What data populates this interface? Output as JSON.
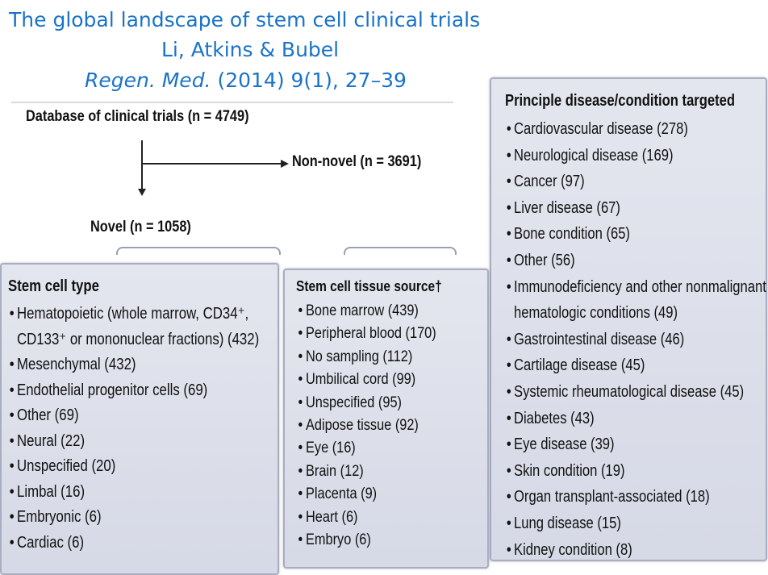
{
  "title": {
    "line1": "The global landscape of stem cell clinical trials",
    "line2": "Li, Atkins & Bubel",
    "journal": "Regen. Med.",
    "citation": " (2014) 9(1), 27–39"
  },
  "flow": {
    "database": "Database of clinical trials (n = 4749)",
    "non_novel": "Non-novel (n = 3691)",
    "novel": "Novel (n = 1058)"
  },
  "stem_cell_type": {
    "heading": "Stem cell type",
    "items": [
      "Hematopoietic (whole marrow, CD34⁺,",
      "CD133⁺ or mononuclear fractions) (432)",
      "Mesenchymal (432)",
      "Endothelial progenitor cells (69)",
      "Other (69)",
      "Neural (22)",
      "Unspecified (20)",
      "Limbal (16)",
      "Embryonic (6)",
      "Cardiac (6)"
    ]
  },
  "tissue_source": {
    "heading": "Stem cell tissue source†",
    "items": [
      "Bone marrow (439)",
      "Peripheral blood (170)",
      "No sampling (112)",
      "Umbilical cord (99)",
      "Unspecified (95)",
      "Adipose tissue (92)",
      "Eye (16)",
      "Brain (12)",
      "Placenta (9)",
      "Heart (6)",
      "Embryo (6)"
    ]
  },
  "disease": {
    "heading": "Principle disease/condition targeted",
    "items": [
      "Cardiovascular disease (278)",
      "Neurological disease (169)",
      "Cancer (97)",
      "Liver disease (67)",
      "Bone condition (65)",
      "Other (56)",
      "Immunodeficiency and other nonmalignant",
      "hematologic conditions (49)",
      "Gastrointestinal disease (46)",
      "Cartilage disease (45)",
      "Systemic rheumatological disease (45)",
      "Diabetes (43)",
      "Eye disease (39)",
      "Skin condition (19)",
      "Organ transplant-associated (18)",
      "Lung disease (15)",
      "Kidney condition (8)"
    ]
  },
  "colors": {
    "title": "#1a73c8",
    "panel": "#dcdfea",
    "panel_border": "#a8adc0"
  }
}
